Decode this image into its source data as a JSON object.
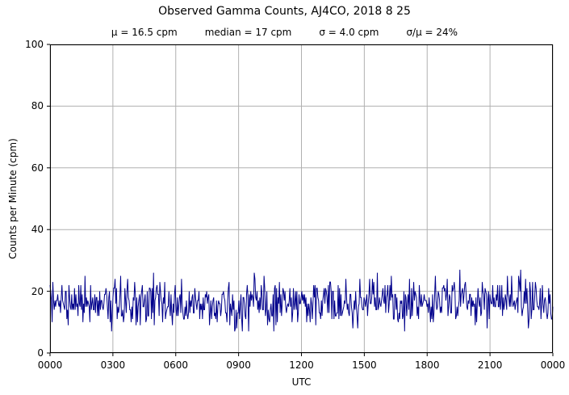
{
  "chart_data": {
    "type": "line",
    "title": "Observed Gamma Counts, AJ4CO, 2018 8 25",
    "stats": {
      "mu": "μ = 16.5 cpm",
      "median": "median = 17 cpm",
      "sigma": "σ = 4.0 cpm",
      "sigma_over_mu": "σ/μ = 24%"
    },
    "xlabel": "UTC",
    "ylabel": "Counts per Minute (cpm)",
    "ylim": [
      0,
      100
    ],
    "yticks": [
      0,
      20,
      40,
      60,
      80,
      100
    ],
    "xtick_labels": [
      "0000",
      "0300",
      "0600",
      "0900",
      "1200",
      "1500",
      "1800",
      "2100",
      "0000"
    ],
    "x_range_hours": [
      0,
      24
    ],
    "grid": true,
    "grid_color": "#b0b0b0",
    "axis_color": "#000000",
    "background_color": "#ffffff",
    "line_color": "#00008b",
    "series": [
      {
        "name": "observed gamma counts",
        "mean_cpm": 16.5,
        "median_cpm": 17,
        "sigma_cpm": 4.0,
        "approx_min_cpm": 5,
        "approx_max_cpm": 30,
        "n_points": 720,
        "seed": 20180825
      }
    ]
  }
}
